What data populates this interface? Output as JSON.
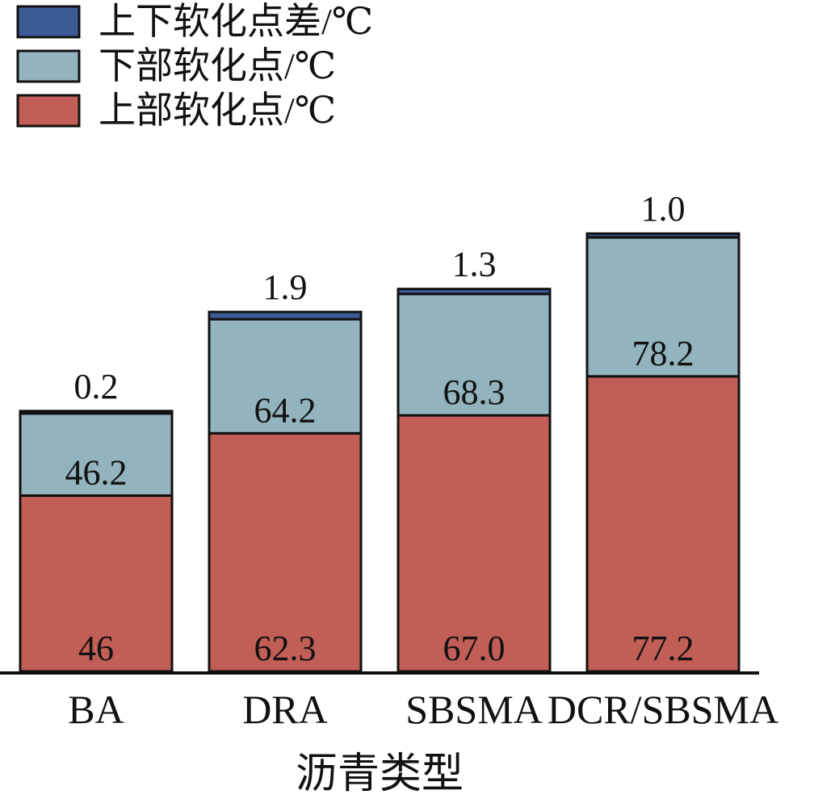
{
  "chart_data": {
    "type": "bar",
    "stacked": true,
    "categories": [
      "BA",
      "DRA",
      "SBSMA",
      "DCR/SBSMA"
    ],
    "series": [
      {
        "name": "上部软化点/℃",
        "values": [
          46,
          62.3,
          67.0,
          77.2
        ],
        "color": "#c15e55",
        "labels": [
          "46",
          "62.3",
          "67.0",
          "77.2"
        ]
      },
      {
        "name": "下部软化点/℃",
        "values": [
          46.2,
          64.2,
          68.3,
          78.2
        ],
        "color": "#93b3be",
        "labels": [
          "46.2",
          "64.2",
          "68.3",
          "78.2"
        ]
      },
      {
        "name": "上下软化点差/℃",
        "values": [
          0.2,
          1.9,
          1.3,
          1.0
        ],
        "color": "#3c5a95",
        "labels": [
          "0.2",
          "1.9",
          "1.3",
          "1.0"
        ]
      }
    ],
    "legend_order": [
      "上下软化点差/℃",
      "下部软化点/℃",
      "上部软化点/℃"
    ],
    "legend_position": "top-left",
    "xlabel": "沥青类型",
    "ylabel": "",
    "grid": false
  }
}
